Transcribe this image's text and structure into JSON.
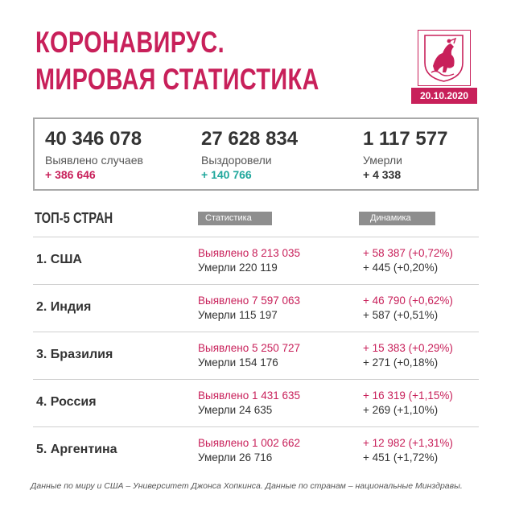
{
  "header": {
    "title_line1": "КОРОНАВИРУС.",
    "title_line2": "МИРОВАЯ СТАТИСТИКА",
    "date": "20.10.2020"
  },
  "colors": {
    "accent": "#c8205a",
    "teal": "#1fa79c",
    "gray_label": "#8e8e8e"
  },
  "summary": {
    "cases": {
      "value": "40 346 078",
      "label": "Выявлено случаев",
      "delta": "+ 386 646"
    },
    "recovered": {
      "value": "27 628 834",
      "label": "Выздоровели",
      "delta": "+ 140 766"
    },
    "deaths": {
      "value": "1 117 577",
      "label": "Умерли",
      "delta": "+ 4 338"
    }
  },
  "table": {
    "heading": "ТОП-5 СТРАН",
    "col_stats": "Статистика",
    "col_dynamics": "Динамика",
    "rows": [
      {
        "country": "1. США",
        "cases": "Выявлено 8 213 035",
        "deaths": "Умерли 220 119",
        "cases_delta": "+ 58 387 (+0,72%)",
        "deaths_delta": "+ 445 (+0,20%)"
      },
      {
        "country": "2. Индия",
        "cases": "Выявлено 7 597 063",
        "deaths": "Умерли 115 197",
        "cases_delta": "+ 46 790 (+0,62%)",
        "deaths_delta": "+ 587 (+0,51%)"
      },
      {
        "country": "3. Бразилия",
        "cases": "Выявлено 5 250 727",
        "deaths": "Умерли 154 176",
        "cases_delta": "+ 15 383 (+0,29%)",
        "deaths_delta": "+ 271 (+0,18%)"
      },
      {
        "country": "4. Россия",
        "cases": "Выявлено 1 431 635",
        "deaths": "Умерли 24 635",
        "cases_delta": "+ 16 319 (+1,15%)",
        "deaths_delta": "+ 269 (+1,10%)"
      },
      {
        "country": "5. Аргентина",
        "cases": "Выявлено 1 002 662",
        "deaths": "Умерли 26 716",
        "cases_delta": "+ 12 982 (+1,31%)",
        "deaths_delta": "+ 451 (+1,72%)"
      }
    ]
  },
  "footer": "Данные по миру и США – Университет Джонса Хопкинса. Данные по странам – национальные Минздравы."
}
